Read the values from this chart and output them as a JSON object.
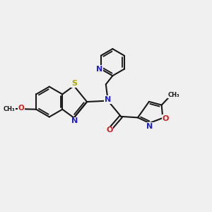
{
  "bg_color": "#f0f0f0",
  "bond_color": "#1a1a1a",
  "n_color": "#2222cc",
  "o_color": "#cc2222",
  "s_color": "#aaaa00",
  "lw": 1.5,
  "figsize": [
    3.0,
    3.0
  ],
  "dpi": 100,
  "xlim": [
    0,
    10
  ],
  "ylim": [
    0,
    10
  ]
}
